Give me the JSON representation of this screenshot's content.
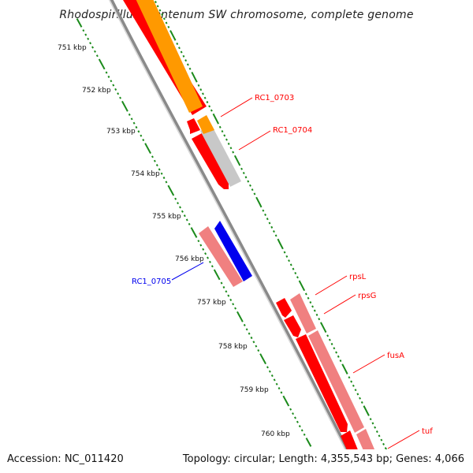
{
  "title": "Rhodospirillum centenum SW chromosome, complete genome",
  "footer": {
    "accession": "Accession: NC_011420",
    "topology": "Topology: circular; Length: 4,355,543 bp; Genes: 4,066"
  },
  "ticks": [
    "751 kbp",
    "752 kbp",
    "753 kbp",
    "754 kbp",
    "755 kbp",
    "756 kbp",
    "757 kbp",
    "758 kbp",
    "759 kbp",
    "760 kbp"
  ],
  "gene_labels": {
    "rc1_0703": "RC1_0703",
    "rc1_0704": "RC1_0704",
    "rc1_0705": "RC1_0705",
    "rpsl": "rpsL",
    "rpsg": "rpsG",
    "fusa": "fusA",
    "tuf": "tuf"
  },
  "colors": {
    "cds_red": "#ff0000",
    "cds_orange": "#ff9900",
    "cds_gray": "#c8c8c8",
    "cds_blue": "#0000ee",
    "cds_pink": "#f08080",
    "tick_green": "#1a8a1a",
    "backbone": "#8a8a8a"
  }
}
